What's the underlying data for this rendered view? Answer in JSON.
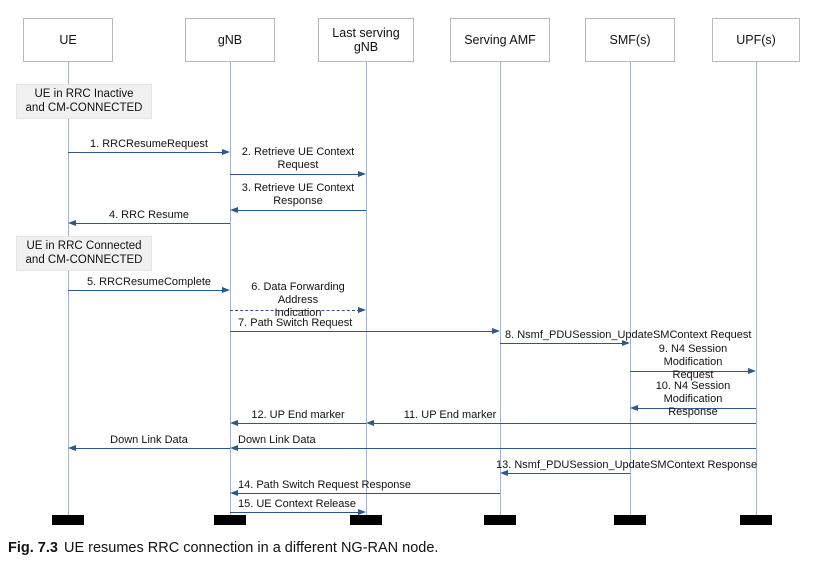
{
  "figure": {
    "caption_label": "Fig. 7.3",
    "caption_text": "UE resumes RRC connection in a different NG-RAN node."
  },
  "colors": {
    "arrow": "#27588e",
    "lifeline": "#a6b4c9",
    "actor_border": "#b9b9b9",
    "note_bg": "#f1f1f1",
    "terminator": "#000000"
  },
  "actors": [
    {
      "id": "ue",
      "label": "UE"
    },
    {
      "id": "gnb",
      "label": "gNB"
    },
    {
      "id": "lsgnb",
      "label": "Last serving gNB"
    },
    {
      "id": "amf",
      "label": "Serving AMF"
    },
    {
      "id": "smf",
      "label": "SMF(s)"
    },
    {
      "id": "upf",
      "label": "UPF(s)"
    }
  ],
  "notes": [
    {
      "text": "UE in RRC Inactive\nand CM-CONNECTED"
    },
    {
      "text": "UE in RRC Connected\nand CM-CONNECTED"
    }
  ],
  "messages": [
    {
      "label": "1. RRCResumeRequest",
      "from": "ue",
      "to": "gnb",
      "style": "solid"
    },
    {
      "label": "2. Retrieve UE Context\nRequest",
      "from": "gnb",
      "to": "lsgnb",
      "style": "solid"
    },
    {
      "label": "3. Retrieve UE Context\nResponse",
      "from": "lsgnb",
      "to": "gnb",
      "style": "solid"
    },
    {
      "label": "4. RRC Resume",
      "from": "gnb",
      "to": "ue",
      "style": "solid"
    },
    {
      "label": "5. RRCResumeComplete",
      "from": "ue",
      "to": "gnb",
      "style": "solid"
    },
    {
      "label": "6. Data Forwarding Address\nIndication",
      "from": "gnb",
      "to": "lsgnb",
      "style": "dashed"
    },
    {
      "label": "7. Path Switch Request",
      "from": "gnb",
      "to": "amf",
      "style": "solid"
    },
    {
      "label": "8. Nsmf_PDUSession_UpdateSMContext Request",
      "from": "amf",
      "to": "smf",
      "style": "solid"
    },
    {
      "label": "9. N4 Session Modification\nRequest",
      "from": "smf",
      "to": "upf",
      "style": "solid"
    },
    {
      "label": "10. N4 Session Modification\nResponse",
      "from": "upf",
      "to": "smf",
      "style": "solid"
    },
    {
      "label": "11. UP End marker",
      "from": "upf",
      "to": "lsgnb",
      "style": "solid"
    },
    {
      "label": "12. UP End marker",
      "from": "lsgnb",
      "to": "gnb",
      "style": "solid"
    },
    {
      "label": "Down Link Data",
      "from": "upf",
      "to": "gnb",
      "style": "solid"
    },
    {
      "label": "Down Link Data",
      "from": "gnb",
      "to": "ue",
      "style": "solid"
    },
    {
      "label": "13. Nsmf_PDUSession_UpdateSMContext Response",
      "from": "smf",
      "to": "amf",
      "style": "solid"
    },
    {
      "label": "14. Path Switch Request Response",
      "from": "amf",
      "to": "gnb",
      "style": "solid"
    },
    {
      "label": "15. UE Context Release",
      "from": "gnb",
      "to": "lsgnb",
      "style": "solid"
    }
  ]
}
